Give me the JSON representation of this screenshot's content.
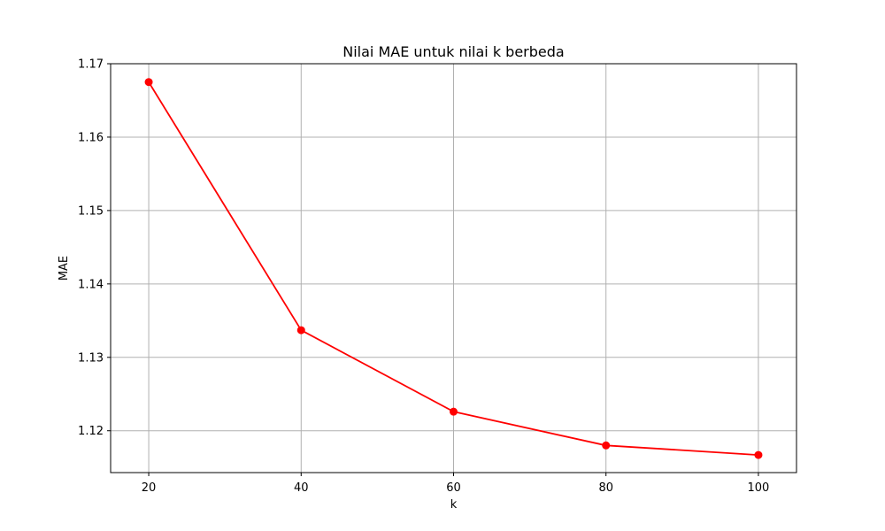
{
  "chart_data": {
    "type": "line",
    "title": "Nilai MAE untuk nilai k berbeda",
    "xlabel": "k",
    "ylabel": "MAE",
    "x": [
      20,
      40,
      60,
      80,
      100
    ],
    "series": [
      {
        "values": [
          1.1675,
          1.1337,
          1.1226,
          1.118,
          1.1167
        ],
        "color": "#ff0000",
        "marker": "circle"
      }
    ],
    "xticks": [
      20,
      40,
      60,
      80,
      100
    ],
    "xtick_labels": [
      "20",
      "40",
      "60",
      "80",
      "100"
    ],
    "yticks": [
      1.12,
      1.13,
      1.14,
      1.15,
      1.16,
      1.17
    ],
    "ytick_labels": [
      "1.12",
      "1.13",
      "1.14",
      "1.15",
      "1.16",
      "1.17"
    ],
    "xlim": [
      15,
      105
    ],
    "ylim": [
      1.1143,
      1.17
    ],
    "grid": true,
    "grid_color": "#b0b0b0",
    "axis_color": "#000000"
  }
}
